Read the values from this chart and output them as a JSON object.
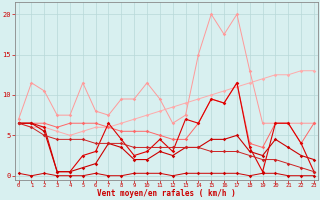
{
  "x": [
    0,
    1,
    2,
    3,
    4,
    5,
    6,
    7,
    8,
    9,
    10,
    11,
    12,
    13,
    14,
    15,
    16,
    17,
    18,
    19,
    20,
    21,
    22,
    23
  ],
  "series": [
    {
      "color": "#ff9999",
      "linewidth": 0.7,
      "markersize": 1.8,
      "y": [
        7,
        11.5,
        10.5,
        7.5,
        7.5,
        11.5,
        8.0,
        7.5,
        9.5,
        9.5,
        11.5,
        9.5,
        6.5,
        7.5,
        15.0,
        20.0,
        17.5,
        20.0,
        13.0,
        6.5,
        6.5,
        6.5,
        6.5,
        6.5
      ]
    },
    {
      "color": "#ffaaaa",
      "linewidth": 0.7,
      "markersize": 1.8,
      "y": [
        6.5,
        6.0,
        6.0,
        5.5,
        5.0,
        5.5,
        6.0,
        6.0,
        6.5,
        7.0,
        7.5,
        8.0,
        8.5,
        9.0,
        9.5,
        10.0,
        10.5,
        11.0,
        11.5,
        12.0,
        12.5,
        12.5,
        13.0,
        13.0
      ]
    },
    {
      "color": "#ff6666",
      "linewidth": 0.7,
      "markersize": 1.8,
      "y": [
        6.5,
        6.5,
        6.5,
        6.0,
        6.5,
        6.5,
        6.5,
        6.0,
        5.5,
        5.5,
        5.5,
        5.0,
        4.5,
        4.5,
        6.5,
        9.5,
        9.0,
        11.5,
        4.0,
        3.5,
        6.5,
        6.5,
        4.0,
        6.5
      ]
    },
    {
      "color": "#dd0000",
      "linewidth": 0.8,
      "markersize": 1.8,
      "y": [
        6.5,
        6.5,
        6.0,
        0.5,
        0.5,
        2.5,
        3.0,
        6.5,
        4.5,
        2.5,
        3.0,
        4.5,
        3.0,
        7.0,
        6.5,
        9.5,
        9.0,
        11.5,
        3.5,
        0.5,
        6.5,
        6.5,
        4.0,
        0.5
      ]
    },
    {
      "color": "#cc0000",
      "linewidth": 0.8,
      "markersize": 1.8,
      "y": [
        6.5,
        6.5,
        5.5,
        0.5,
        0.5,
        1.0,
        1.5,
        4.0,
        3.5,
        2.0,
        2.0,
        3.0,
        2.5,
        3.5,
        3.5,
        4.5,
        4.5,
        5.0,
        3.0,
        2.5,
        4.5,
        3.5,
        2.5,
        2.0
      ]
    },
    {
      "color": "#cc0000",
      "linewidth": 0.7,
      "markersize": 1.8,
      "y": [
        0.3,
        0.0,
        0.3,
        0.0,
        0.0,
        0.0,
        0.3,
        0.0,
        0.0,
        0.3,
        0.3,
        0.3,
        0.0,
        0.3,
        0.3,
        0.3,
        0.3,
        0.3,
        0.0,
        0.3,
        0.3,
        0.0,
        0.0,
        0.0
      ]
    },
    {
      "color": "#cc2222",
      "linewidth": 0.7,
      "markersize": 1.8,
      "y": [
        6.5,
        6.0,
        5.0,
        4.5,
        4.5,
        4.5,
        4.0,
        4.0,
        4.0,
        3.5,
        3.5,
        3.5,
        3.5,
        3.5,
        3.5,
        3.0,
        3.0,
        3.0,
        2.5,
        2.0,
        2.0,
        1.5,
        1.0,
        0.5
      ]
    }
  ],
  "xlim": [
    -0.3,
    23.3
  ],
  "ylim": [
    -0.5,
    21.5
  ],
  "yticks": [
    0,
    5,
    10,
    15,
    20
  ],
  "xticks": [
    0,
    1,
    2,
    3,
    4,
    5,
    6,
    7,
    8,
    9,
    10,
    11,
    12,
    13,
    14,
    15,
    16,
    17,
    18,
    19,
    20,
    21,
    22,
    23
  ],
  "xlabel": "Vent moyen/en rafales ( km/h )",
  "bgcolor": "#d8f0f0",
  "grid_color": "#b8d8d8",
  "xlabel_color": "#cc0000",
  "tick_color": "#cc0000",
  "spine_color": "#888888"
}
